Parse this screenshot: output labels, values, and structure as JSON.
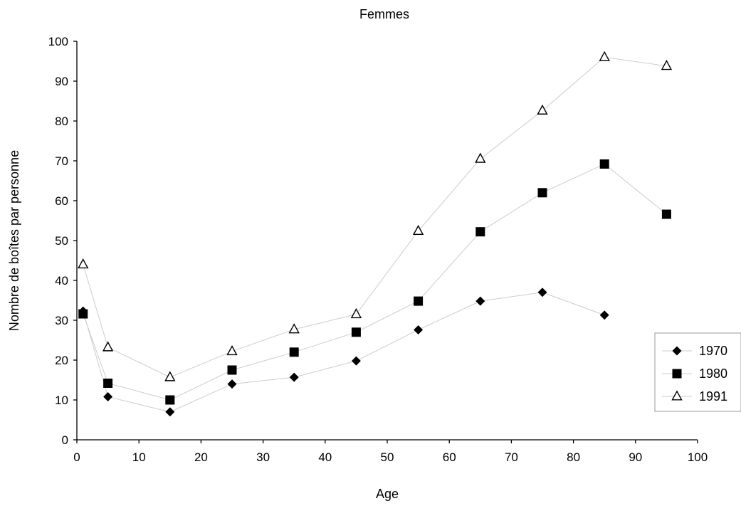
{
  "chart_data": {
    "type": "line",
    "title": "Femmes",
    "xlabel": "Age",
    "ylabel": "Nombre de boîtes par personne",
    "xlim": [
      0,
      100
    ],
    "ylim": [
      0,
      100
    ],
    "x_ticks": [
      "0",
      "10",
      "20",
      "30",
      "40",
      "50",
      "60",
      "70",
      "80",
      "90",
      "100"
    ],
    "y_ticks": [
      "0",
      "10",
      "20",
      "30",
      "40",
      "50",
      "60",
      "70",
      "80",
      "90",
      "100"
    ],
    "grid": false,
    "legend_position": "right",
    "series": [
      {
        "name": "1970",
        "marker": "diamond",
        "marker_color": "#000000",
        "line_color": "#cccccc",
        "x": [
          1,
          5,
          15,
          25,
          35,
          45,
          55,
          65,
          75,
          85
        ],
        "y": [
          32.3,
          10.8,
          7.0,
          14.0,
          15.7,
          19.8,
          27.6,
          34.8,
          37.0,
          31.3
        ]
      },
      {
        "name": "1980",
        "marker": "square",
        "marker_color": "#000000",
        "line_color": "#cccccc",
        "x": [
          1,
          5,
          15,
          25,
          35,
          45,
          55,
          65,
          75,
          85,
          95
        ],
        "y": [
          31.6,
          14.2,
          10.0,
          17.5,
          22.0,
          27.0,
          34.8,
          52.2,
          62.0,
          69.2,
          56.6
        ]
      },
      {
        "name": "1991",
        "marker": "triangle-open",
        "marker_color": "#000000",
        "line_color": "#cccccc",
        "x": [
          1,
          5,
          15,
          25,
          35,
          45,
          55,
          65,
          75,
          85,
          95
        ],
        "y": [
          44.0,
          23.2,
          15.7,
          22.2,
          27.7,
          31.5,
          52.4,
          70.5,
          82.6,
          96.0,
          93.8
        ]
      }
    ]
  }
}
